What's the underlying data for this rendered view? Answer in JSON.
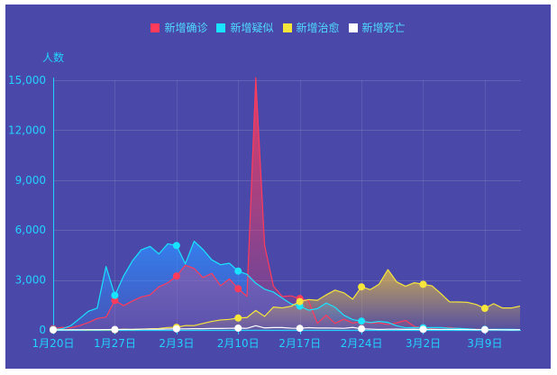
{
  "theme": {
    "background": "#4a48a8",
    "axis": "#22d3ff",
    "label": "#4fdcff"
  },
  "chart_data": {
    "type": "line",
    "ylabel": "人数",
    "ylim": [
      0,
      15000
    ],
    "yticks": [
      {
        "value": 0,
        "label": "0"
      },
      {
        "value": 3000,
        "label": "3,000"
      },
      {
        "value": 6000,
        "label": "6,000"
      },
      {
        "value": 9000,
        "label": "9,000"
      },
      {
        "value": 12000,
        "label": "12,000"
      },
      {
        "value": 15000,
        "label": "15,000"
      }
    ],
    "grid": true,
    "legend": "top-center",
    "x": [
      "1月20日",
      "1月21日",
      "1月22日",
      "1月23日",
      "1月24日",
      "1月25日",
      "1月26日",
      "1月27日",
      "1月28日",
      "1月29日",
      "1月30日",
      "1月31日",
      "2月1日",
      "2月2日",
      "2月3日",
      "2月4日",
      "2月5日",
      "2月6日",
      "2月7日",
      "2月8日",
      "2月9日",
      "2月10日",
      "2月11日",
      "2月12日",
      "2月13日",
      "2月14日",
      "2月15日",
      "2月16日",
      "2月17日",
      "2月18日",
      "2月19日",
      "2月20日",
      "2月21日",
      "2月22日",
      "2月23日",
      "2月24日",
      "2月25日",
      "2月26日",
      "2月27日",
      "2月28日",
      "2月29日",
      "3月1日",
      "3月2日",
      "3月3日",
      "3月4日",
      "3月5日",
      "3月6日",
      "3月7日",
      "3月8日",
      "3月9日",
      "3月10日",
      "3月11日",
      "3月12日",
      "3月13日"
    ],
    "x_tick_labels": [
      "1月20日",
      "1月27日",
      "2月3日",
      "2月10日",
      "2月17日",
      "2月24日",
      "3月2日",
      "3月9日"
    ],
    "series": [
      {
        "name": "新增确诊",
        "color": "#ff3b5c",
        "area_color": "#ff3b5c",
        "values": [
          77,
          149,
          131,
          259,
          444,
          688,
          769,
          1771,
          1459,
          1737,
          1982,
          2102,
          2590,
          2829,
          3235,
          3887,
          3694,
          3143,
          3399,
          2656,
          3062,
          2478,
          2015,
          15152,
          5090,
          2641,
          2009,
          2048,
          1886,
          1749,
          394,
          889,
          397,
          648,
          409,
          508,
          406,
          433,
          327,
          427,
          573,
          202,
          125,
          119,
          139,
          143,
          99,
          44,
          40,
          19,
          24,
          15,
          8,
          11
        ]
      },
      {
        "name": "新增疑似",
        "color": "#18e4ff",
        "area_color": "#2f8cff",
        "values": [
          27,
          60,
          257,
          680,
          1118,
          1309,
          3806,
          2077,
          3248,
          4148,
          4812,
          5019,
          4562,
          5173,
          5072,
          3971,
          5328,
          4833,
          4214,
          3916,
          4008,
          3536,
          3342,
          2807,
          2450,
          2277,
          1918,
          1563,
          1432,
          1185,
          1277,
          1614,
          1361,
          882,
          620,
          530,
          439,
          508,
          452,
          248,
          132,
          141,
          129,
          143,
          143,
          102,
          94,
          60,
          36,
          31,
          33,
          33,
          33,
          17
        ]
      },
      {
        "name": "新增治愈",
        "color": "#f6e63c",
        "area_color": "#f5c83c",
        "values": [
          0,
          3,
          6,
          4,
          1,
          10,
          2,
          9,
          43,
          21,
          47,
          72,
          85,
          147,
          157,
          262,
          261,
          387,
          510,
          600,
          632,
          716,
          744,
          1171,
          812,
          1373,
          1323,
          1425,
          1701,
          1824,
          1779,
          2109,
          2393,
          2230,
          1846,
          2589,
          2422,
          2750,
          3622,
          2885,
          2623,
          2837,
          2742,
          2652,
          2189,
          1681,
          1678,
          1661,
          1535,
          1297,
          1578,
          1318,
          1318,
          1430
        ]
      },
      {
        "name": "新增死亡",
        "color": "#ffffff",
        "values": [
          3,
          3,
          8,
          8,
          16,
          15,
          24,
          26,
          26,
          38,
          43,
          46,
          45,
          57,
          64,
          65,
          73,
          73,
          86,
          89,
          97,
          108,
          97,
          254,
          121,
          143,
          142,
          105,
          98,
          136,
          114,
          118,
          109,
          97,
          150,
          71,
          52,
          29,
          44,
          47,
          35,
          42,
          31,
          38,
          31,
          30,
          28,
          27,
          22,
          17,
          22,
          11,
          7,
          13
        ]
      }
    ]
  }
}
